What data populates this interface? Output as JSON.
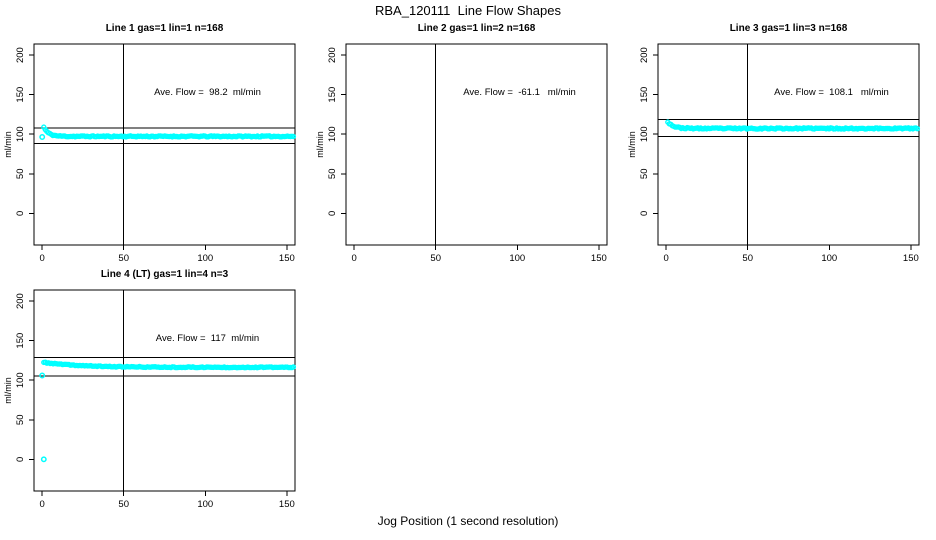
{
  "figure": {
    "title": "RBA_120111  Line Flow Shapes",
    "x_axis_label": "Jog Position (1 second resolution)",
    "background_color": "#FFFFFF",
    "axis_color": "#000000",
    "point_color": "#00FFFF"
  },
  "chart_data": [
    {
      "type": "scatter",
      "title": "Line 1 gas=1 lin=1 n=168",
      "annotation": "Ave. Flow =  98.2  ml/min",
      "ave_flow_ml_min": 98.2,
      "n_points": 168,
      "ylabel": "ml/min",
      "x_ticks": [
        0,
        50,
        100,
        150
      ],
      "y_ticks": [
        0,
        50,
        100,
        150,
        200
      ],
      "xlim": [
        -5,
        155
      ],
      "ylim": [
        -40,
        214
      ],
      "grid": false,
      "vline_x": 50,
      "hlines": [
        108.0,
        88.4
      ],
      "series": [
        {
          "name": "flow",
          "marker": "open-circle",
          "points_spec": {
            "x_start": 1,
            "x_end": 154,
            "n": 168,
            "y_start": 109,
            "y_settle": 97.3,
            "decay": 0.35,
            "noise": 0.7,
            "seed": 11
          }
        }
      ],
      "outliers": [
        [
          0,
          96.5
        ]
      ]
    },
    {
      "type": "scatter",
      "title": "Line 2 gas=1 lin=2 n=168",
      "annotation": "Ave. Flow =  -61.1   ml/min",
      "ave_flow_ml_min": -61.1,
      "n_points": 168,
      "ylabel": "ml/min",
      "x_ticks": [
        0,
        50,
        100,
        150
      ],
      "y_ticks": [
        0,
        50,
        100,
        150,
        200
      ],
      "xlim": [
        -5,
        155
      ],
      "ylim": [
        -40,
        214
      ],
      "grid": false,
      "vline_x": 50,
      "hlines": [],
      "series": [],
      "outliers": []
    },
    {
      "type": "scatter",
      "title": "Line 3 gas=1 lin=3 n=168",
      "annotation": "Ave. Flow =  108.1   ml/min",
      "ave_flow_ml_min": 108.1,
      "n_points": 168,
      "ylabel": "ml/min",
      "x_ticks": [
        0,
        50,
        100,
        150
      ],
      "y_ticks": [
        0,
        50,
        100,
        150,
        200
      ],
      "xlim": [
        -5,
        155
      ],
      "ylim": [
        -40,
        214
      ],
      "grid": false,
      "vline_x": 50,
      "hlines": [
        118.9,
        97.3
      ],
      "series": [
        {
          "name": "flow",
          "marker": "open-circle",
          "points_spec": {
            "x_start": 1,
            "x_end": 154,
            "n": 168,
            "y_start": 116,
            "y_settle": 107.3,
            "decay": 0.3,
            "noise": 0.8,
            "seed": 23
          }
        }
      ],
      "outliers": []
    },
    {
      "type": "scatter",
      "title": "Line 4 (LT) gas=1 lin=4 n=3",
      "annotation": "Ave. Flow =  117  ml/min",
      "ave_flow_ml_min": 117,
      "n_jogs": 3,
      "ylabel": "ml/min",
      "x_ticks": [
        0,
        50,
        100,
        150
      ],
      "y_ticks": [
        0,
        50,
        100,
        150,
        200
      ],
      "xlim": [
        -5,
        155
      ],
      "ylim": [
        -40,
        214
      ],
      "grid": false,
      "vline_x": 50,
      "hlines": [
        128.7,
        105.3
      ],
      "series": [
        {
          "name": "flow",
          "marker": "open-circle",
          "points_spec": {
            "x_start": 1,
            "x_end": 154,
            "n": 160,
            "y_start": 122.5,
            "y_settle": 116.3,
            "decay": 0.045,
            "noise": 0.55,
            "seed": 37
          }
        }
      ],
      "outliers": [
        [
          0,
          106
        ],
        [
          1,
          0
        ]
      ]
    }
  ]
}
